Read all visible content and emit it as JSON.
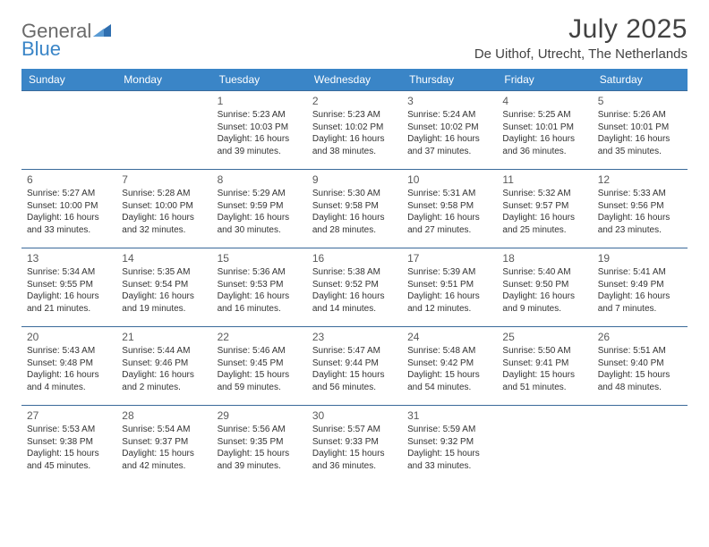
{
  "logo": {
    "text_general": "General",
    "text_blue": "Blue",
    "icon_color": "#2f6fb0",
    "text_general_color": "#6a6a6a",
    "text_blue_color": "#3a85c7"
  },
  "header": {
    "month_title": "July 2025",
    "location": "De Uithof, Utrecht, The Netherlands",
    "title_color": "#424242"
  },
  "colors": {
    "header_bg": "#3a85c7",
    "header_text": "#ffffff",
    "row_border": "#3a6a9a",
    "daynum_color": "#5a5a5a",
    "body_text": "#333333",
    "background": "#ffffff"
  },
  "typography": {
    "month_title_fontsize": 30,
    "location_fontsize": 15,
    "dayhead_fontsize": 12,
    "daynum_fontsize": 12,
    "dayinfo_fontsize": 10
  },
  "day_names": [
    "Sunday",
    "Monday",
    "Tuesday",
    "Wednesday",
    "Thursday",
    "Friday",
    "Saturday"
  ],
  "weeks": [
    [
      null,
      null,
      {
        "n": "1",
        "sunrise": "Sunrise: 5:23 AM",
        "sunset": "Sunset: 10:03 PM",
        "day1": "Daylight: 16 hours",
        "day2": "and 39 minutes."
      },
      {
        "n": "2",
        "sunrise": "Sunrise: 5:23 AM",
        "sunset": "Sunset: 10:02 PM",
        "day1": "Daylight: 16 hours",
        "day2": "and 38 minutes."
      },
      {
        "n": "3",
        "sunrise": "Sunrise: 5:24 AM",
        "sunset": "Sunset: 10:02 PM",
        "day1": "Daylight: 16 hours",
        "day2": "and 37 minutes."
      },
      {
        "n": "4",
        "sunrise": "Sunrise: 5:25 AM",
        "sunset": "Sunset: 10:01 PM",
        "day1": "Daylight: 16 hours",
        "day2": "and 36 minutes."
      },
      {
        "n": "5",
        "sunrise": "Sunrise: 5:26 AM",
        "sunset": "Sunset: 10:01 PM",
        "day1": "Daylight: 16 hours",
        "day2": "and 35 minutes."
      }
    ],
    [
      {
        "n": "6",
        "sunrise": "Sunrise: 5:27 AM",
        "sunset": "Sunset: 10:00 PM",
        "day1": "Daylight: 16 hours",
        "day2": "and 33 minutes."
      },
      {
        "n": "7",
        "sunrise": "Sunrise: 5:28 AM",
        "sunset": "Sunset: 10:00 PM",
        "day1": "Daylight: 16 hours",
        "day2": "and 32 minutes."
      },
      {
        "n": "8",
        "sunrise": "Sunrise: 5:29 AM",
        "sunset": "Sunset: 9:59 PM",
        "day1": "Daylight: 16 hours",
        "day2": "and 30 minutes."
      },
      {
        "n": "9",
        "sunrise": "Sunrise: 5:30 AM",
        "sunset": "Sunset: 9:58 PM",
        "day1": "Daylight: 16 hours",
        "day2": "and 28 minutes."
      },
      {
        "n": "10",
        "sunrise": "Sunrise: 5:31 AM",
        "sunset": "Sunset: 9:58 PM",
        "day1": "Daylight: 16 hours",
        "day2": "and 27 minutes."
      },
      {
        "n": "11",
        "sunrise": "Sunrise: 5:32 AM",
        "sunset": "Sunset: 9:57 PM",
        "day1": "Daylight: 16 hours",
        "day2": "and 25 minutes."
      },
      {
        "n": "12",
        "sunrise": "Sunrise: 5:33 AM",
        "sunset": "Sunset: 9:56 PM",
        "day1": "Daylight: 16 hours",
        "day2": "and 23 minutes."
      }
    ],
    [
      {
        "n": "13",
        "sunrise": "Sunrise: 5:34 AM",
        "sunset": "Sunset: 9:55 PM",
        "day1": "Daylight: 16 hours",
        "day2": "and 21 minutes."
      },
      {
        "n": "14",
        "sunrise": "Sunrise: 5:35 AM",
        "sunset": "Sunset: 9:54 PM",
        "day1": "Daylight: 16 hours",
        "day2": "and 19 minutes."
      },
      {
        "n": "15",
        "sunrise": "Sunrise: 5:36 AM",
        "sunset": "Sunset: 9:53 PM",
        "day1": "Daylight: 16 hours",
        "day2": "and 16 minutes."
      },
      {
        "n": "16",
        "sunrise": "Sunrise: 5:38 AM",
        "sunset": "Sunset: 9:52 PM",
        "day1": "Daylight: 16 hours",
        "day2": "and 14 minutes."
      },
      {
        "n": "17",
        "sunrise": "Sunrise: 5:39 AM",
        "sunset": "Sunset: 9:51 PM",
        "day1": "Daylight: 16 hours",
        "day2": "and 12 minutes."
      },
      {
        "n": "18",
        "sunrise": "Sunrise: 5:40 AM",
        "sunset": "Sunset: 9:50 PM",
        "day1": "Daylight: 16 hours",
        "day2": "and 9 minutes."
      },
      {
        "n": "19",
        "sunrise": "Sunrise: 5:41 AM",
        "sunset": "Sunset: 9:49 PM",
        "day1": "Daylight: 16 hours",
        "day2": "and 7 minutes."
      }
    ],
    [
      {
        "n": "20",
        "sunrise": "Sunrise: 5:43 AM",
        "sunset": "Sunset: 9:48 PM",
        "day1": "Daylight: 16 hours",
        "day2": "and 4 minutes."
      },
      {
        "n": "21",
        "sunrise": "Sunrise: 5:44 AM",
        "sunset": "Sunset: 9:46 PM",
        "day1": "Daylight: 16 hours",
        "day2": "and 2 minutes."
      },
      {
        "n": "22",
        "sunrise": "Sunrise: 5:46 AM",
        "sunset": "Sunset: 9:45 PM",
        "day1": "Daylight: 15 hours",
        "day2": "and 59 minutes."
      },
      {
        "n": "23",
        "sunrise": "Sunrise: 5:47 AM",
        "sunset": "Sunset: 9:44 PM",
        "day1": "Daylight: 15 hours",
        "day2": "and 56 minutes."
      },
      {
        "n": "24",
        "sunrise": "Sunrise: 5:48 AM",
        "sunset": "Sunset: 9:42 PM",
        "day1": "Daylight: 15 hours",
        "day2": "and 54 minutes."
      },
      {
        "n": "25",
        "sunrise": "Sunrise: 5:50 AM",
        "sunset": "Sunset: 9:41 PM",
        "day1": "Daylight: 15 hours",
        "day2": "and 51 minutes."
      },
      {
        "n": "26",
        "sunrise": "Sunrise: 5:51 AM",
        "sunset": "Sunset: 9:40 PM",
        "day1": "Daylight: 15 hours",
        "day2": "and 48 minutes."
      }
    ],
    [
      {
        "n": "27",
        "sunrise": "Sunrise: 5:53 AM",
        "sunset": "Sunset: 9:38 PM",
        "day1": "Daylight: 15 hours",
        "day2": "and 45 minutes."
      },
      {
        "n": "28",
        "sunrise": "Sunrise: 5:54 AM",
        "sunset": "Sunset: 9:37 PM",
        "day1": "Daylight: 15 hours",
        "day2": "and 42 minutes."
      },
      {
        "n": "29",
        "sunrise": "Sunrise: 5:56 AM",
        "sunset": "Sunset: 9:35 PM",
        "day1": "Daylight: 15 hours",
        "day2": "and 39 minutes."
      },
      {
        "n": "30",
        "sunrise": "Sunrise: 5:57 AM",
        "sunset": "Sunset: 9:33 PM",
        "day1": "Daylight: 15 hours",
        "day2": "and 36 minutes."
      },
      {
        "n": "31",
        "sunrise": "Sunrise: 5:59 AM",
        "sunset": "Sunset: 9:32 PM",
        "day1": "Daylight: 15 hours",
        "day2": "and 33 minutes."
      },
      null,
      null
    ]
  ]
}
